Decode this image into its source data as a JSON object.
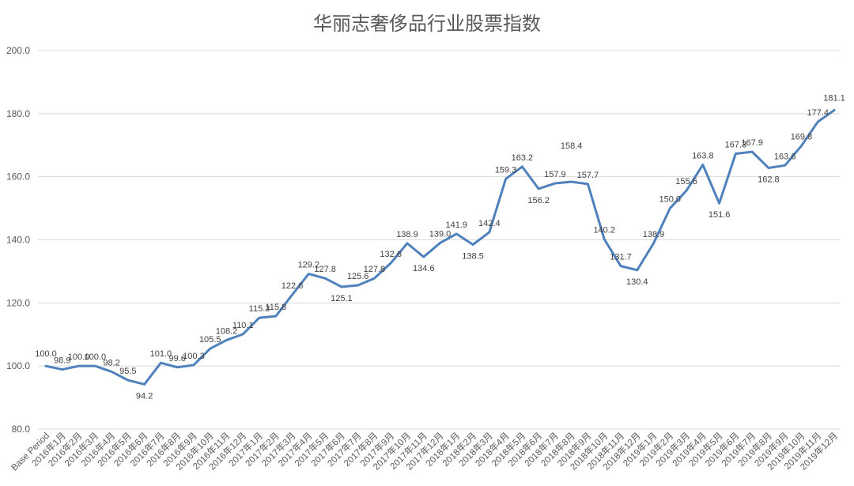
{
  "chart_data": {
    "type": "line",
    "title": "华丽志奢侈品行业股票指数",
    "xlabel": "",
    "ylabel": "",
    "ylim": [
      80,
      200
    ],
    "yticks": [
      "80.0",
      "100.0",
      "120.0",
      "140.0",
      "160.0",
      "180.0",
      "200.0"
    ],
    "grid": true,
    "legend": "none",
    "categories": [
      "Base Period",
      "2016年1月",
      "2016年2月",
      "2016年3月",
      "2016年4月",
      "2016年5月",
      "2016年6月",
      "2016年7月",
      "2016年8月",
      "2016年9月",
      "2016年10月",
      "2016年11月",
      "2016年12月",
      "2017年1月",
      "2017年2月",
      "2017年3月",
      "2017年4月",
      "2017年5月",
      "2017年6月",
      "2017年7月",
      "2017年8月",
      "2017年9月",
      "2017年10月",
      "2017年11月",
      "2017年12月",
      "2018年1月",
      "2018年2月",
      "2018年3月",
      "2018年4月",
      "2018年5月",
      "2018年6月",
      "2018年7月",
      "2018年8月",
      "2018年9月",
      "2018年10月",
      "2018年11月",
      "2018年12月",
      "2019年1月",
      "2019年2月",
      "2019年3月",
      "2019年4月",
      "2019年5月",
      "2019年6月",
      "2019年7月",
      "2019年8月",
      "2019年9月",
      "2019年10月",
      "2019年11月",
      "2019年12月"
    ],
    "values": [
      100.0,
      98.9,
      100.0,
      100.0,
      98.2,
      95.5,
      94.2,
      101.0,
      99.6,
      100.3,
      105.5,
      108.2,
      110.1,
      115.3,
      115.8,
      122.6,
      129.2,
      127.8,
      125.1,
      125.6,
      127.8,
      132.6,
      138.9,
      134.6,
      139.0,
      141.9,
      138.5,
      142.4,
      159.3,
      163.2,
      156.2,
      157.9,
      158.4,
      157.7,
      140.2,
      131.7,
      130.4,
      138.9,
      150.0,
      155.6,
      163.8,
      151.6,
      167.3,
      167.9,
      162.8,
      163.6,
      169.8,
      177.4,
      181.1
    ],
    "labels": [
      "100.0",
      "98.9",
      "100.0",
      "100.0",
      "98.2",
      "95.5",
      "94.2",
      "101.0",
      "99.6",
      "100.3",
      "105.5",
      "108.2",
      "110.1",
      "115.3",
      "115.8",
      "122.6",
      "129.2",
      "127.8",
      "125.1",
      "125.6",
      "127.8",
      "132.6",
      "138.9",
      "134.6",
      "139.0",
      "141.9",
      "138.5",
      "142.4",
      "159.3",
      "163.2",
      "156.2",
      "157.9",
      "158.4",
      "157.7",
      "140.2",
      "131.7",
      "130.4",
      "138.9",
      "150.0",
      "155.6",
      "163.8",
      "151.6",
      "167.3",
      "167.9",
      "162.8",
      "163.6",
      "169.8",
      "177.4",
      "181.1"
    ],
    "colors": {
      "series": "#4f81bd",
      "grid": "#d9d9d9",
      "text": "#595959"
    }
  }
}
